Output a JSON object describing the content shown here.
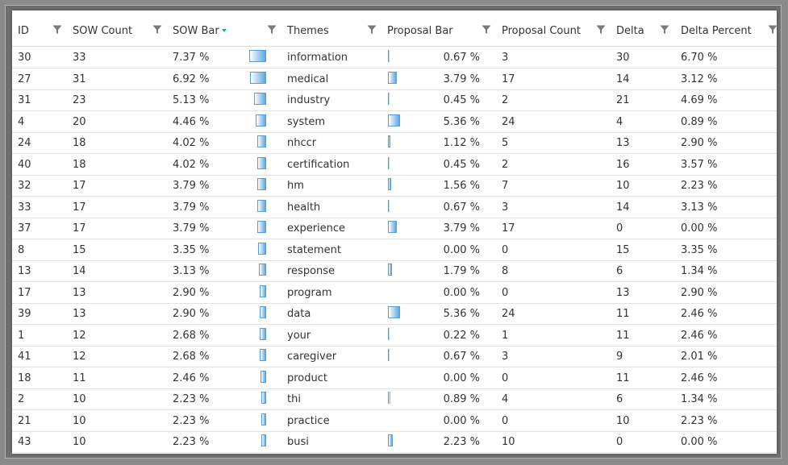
{
  "header": {
    "columns": [
      {
        "key": "id",
        "label": "ID"
      },
      {
        "key": "sow_count",
        "label": "SOW Count"
      },
      {
        "key": "sow_bar",
        "label": "SOW Bar"
      },
      {
        "key": "themes",
        "label": "Themes"
      },
      {
        "key": "proposal_bar",
        "label": "Proposal Bar"
      },
      {
        "key": "proposal_count",
        "label": "Proposal Count"
      },
      {
        "key": "delta",
        "label": "Delta"
      },
      {
        "key": "delta_percent",
        "label": "Delta Percent"
      }
    ],
    "sorted_column": "SOW Bar",
    "accent": "#2aa6a0"
  },
  "bar_color": "#5aa7e6",
  "rows": [
    {
      "id": "30",
      "sow_count": "33",
      "sow_pct": "7.37 %",
      "sow_val": 7.37,
      "theme": "information",
      "prop_pct": "0.67 %",
      "prop_val": 0.67,
      "prop_count": "3",
      "delta": "30",
      "delta_pct": "6.70 %"
    },
    {
      "id": "27",
      "sow_count": "31",
      "sow_pct": "6.92 %",
      "sow_val": 6.92,
      "theme": "medical",
      "prop_pct": "3.79 %",
      "prop_val": 3.79,
      "prop_count": "17",
      "delta": "14",
      "delta_pct": "3.12 %"
    },
    {
      "id": "31",
      "sow_count": "23",
      "sow_pct": "5.13 %",
      "sow_val": 5.13,
      "theme": "industry",
      "prop_pct": "0.45 %",
      "prop_val": 0.45,
      "prop_count": "2",
      "delta": "21",
      "delta_pct": "4.69 %"
    },
    {
      "id": "4",
      "sow_count": "20",
      "sow_pct": "4.46 %",
      "sow_val": 4.46,
      "theme": "system",
      "prop_pct": "5.36 %",
      "prop_val": 5.36,
      "prop_count": "24",
      "delta": "4",
      "delta_pct": "0.89 %"
    },
    {
      "id": "24",
      "sow_count": "18",
      "sow_pct": "4.02 %",
      "sow_val": 4.02,
      "theme": "nhccr",
      "prop_pct": "1.12 %",
      "prop_val": 1.12,
      "prop_count": "5",
      "delta": "13",
      "delta_pct": "2.90 %"
    },
    {
      "id": "40",
      "sow_count": "18",
      "sow_pct": "4.02 %",
      "sow_val": 4.02,
      "theme": "certification",
      "prop_pct": "0.45 %",
      "prop_val": 0.45,
      "prop_count": "2",
      "delta": "16",
      "delta_pct": "3.57 %"
    },
    {
      "id": "32",
      "sow_count": "17",
      "sow_pct": "3.79 %",
      "sow_val": 3.79,
      "theme": "hm",
      "prop_pct": "1.56 %",
      "prop_val": 1.56,
      "prop_count": "7",
      "delta": "10",
      "delta_pct": "2.23 %"
    },
    {
      "id": "33",
      "sow_count": "17",
      "sow_pct": "3.79 %",
      "sow_val": 3.79,
      "theme": "health",
      "prop_pct": "0.67 %",
      "prop_val": 0.67,
      "prop_count": "3",
      "delta": "14",
      "delta_pct": "3.13 %"
    },
    {
      "id": "37",
      "sow_count": "17",
      "sow_pct": "3.79 %",
      "sow_val": 3.79,
      "theme": "experience",
      "prop_pct": "3.79 %",
      "prop_val": 3.79,
      "prop_count": "17",
      "delta": "0",
      "delta_pct": "0.00 %"
    },
    {
      "id": "8",
      "sow_count": "15",
      "sow_pct": "3.35 %",
      "sow_val": 3.35,
      "theme": "statement",
      "prop_pct": "0.00 %",
      "prop_val": 0,
      "prop_count": "0",
      "delta": "15",
      "delta_pct": "3.35 %"
    },
    {
      "id": "13",
      "sow_count": "14",
      "sow_pct": "3.13 %",
      "sow_val": 3.13,
      "theme": "response",
      "prop_pct": "1.79 %",
      "prop_val": 1.79,
      "prop_count": "8",
      "delta": "6",
      "delta_pct": "1.34 %"
    },
    {
      "id": "17",
      "sow_count": "13",
      "sow_pct": "2.90 %",
      "sow_val": 2.9,
      "theme": "program",
      "prop_pct": "0.00 %",
      "prop_val": 0,
      "prop_count": "0",
      "delta": "13",
      "delta_pct": "2.90 %"
    },
    {
      "id": "39",
      "sow_count": "13",
      "sow_pct": "2.90 %",
      "sow_val": 2.9,
      "theme": "data",
      "prop_pct": "5.36 %",
      "prop_val": 5.36,
      "prop_count": "24",
      "delta": "11",
      "delta_pct": "2.46 %"
    },
    {
      "id": "1",
      "sow_count": "12",
      "sow_pct": "2.68 %",
      "sow_val": 2.68,
      "theme": "your",
      "prop_pct": "0.22 %",
      "prop_val": 0.22,
      "prop_count": "1",
      "delta": "11",
      "delta_pct": "2.46 %"
    },
    {
      "id": "41",
      "sow_count": "12",
      "sow_pct": "2.68 %",
      "sow_val": 2.68,
      "theme": "caregiver",
      "prop_pct": "0.67 %",
      "prop_val": 0.67,
      "prop_count": "3",
      "delta": "9",
      "delta_pct": "2.01 %"
    },
    {
      "id": "18",
      "sow_count": "11",
      "sow_pct": "2.46 %",
      "sow_val": 2.46,
      "theme": "product",
      "prop_pct": "0.00 %",
      "prop_val": 0,
      "prop_count": "0",
      "delta": "11",
      "delta_pct": "2.46 %"
    },
    {
      "id": "2",
      "sow_count": "10",
      "sow_pct": "2.23 %",
      "sow_val": 2.23,
      "theme": "thi",
      "prop_pct": "0.89 %",
      "prop_val": 0.89,
      "prop_count": "4",
      "delta": "6",
      "delta_pct": "1.34 %"
    },
    {
      "id": "21",
      "sow_count": "10",
      "sow_pct": "2.23 %",
      "sow_val": 2.23,
      "theme": "practice",
      "prop_pct": "0.00 %",
      "prop_val": 0,
      "prop_count": "0",
      "delta": "10",
      "delta_pct": "2.23 %"
    },
    {
      "id": "43",
      "sow_count": "10",
      "sow_pct": "2.23 %",
      "sow_val": 2.23,
      "theme": "busi",
      "prop_pct": "2.23 %",
      "prop_val": 2.23,
      "prop_count": "10",
      "delta": "0",
      "delta_pct": "0.00 %"
    }
  ]
}
